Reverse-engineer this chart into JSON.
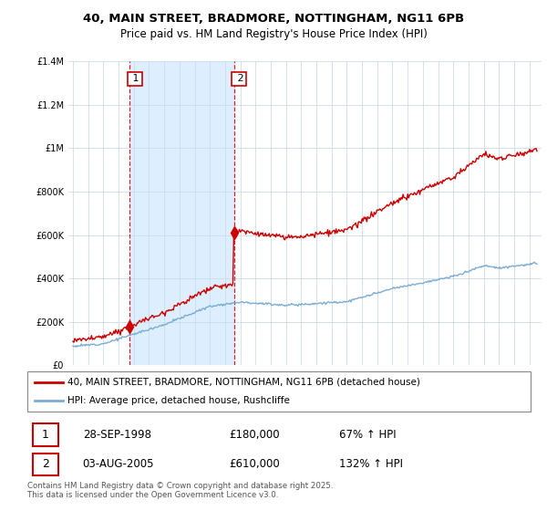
{
  "title_line1": "40, MAIN STREET, BRADMORE, NOTTINGHAM, NG11 6PB",
  "title_line2": "Price paid vs. HM Land Registry's House Price Index (HPI)",
  "legend_entry1": "40, MAIN STREET, BRADMORE, NOTTINGHAM, NG11 6PB (detached house)",
  "legend_entry2": "HPI: Average price, detached house, Rushcliffe",
  "sale1_label": "1",
  "sale1_date": "28-SEP-1998",
  "sale1_price": "£180,000",
  "sale1_hpi": "67% ↑ HPI",
  "sale2_label": "2",
  "sale2_date": "03-AUG-2005",
  "sale2_price": "£610,000",
  "sale2_hpi": "132% ↑ HPI",
  "footer": "Contains HM Land Registry data © Crown copyright and database right 2025.\nThis data is licensed under the Open Government Licence v3.0.",
  "sale1_color": "#cc0000",
  "sale2_color": "#cc0000",
  "vline_color": "#cc0000",
  "hpi_color": "#7aadd4",
  "red_line_color": "#cc0000",
  "shade_color": "#ddeeff",
  "ylim": [
    0,
    1400000
  ],
  "yticks": [
    0,
    200000,
    400000,
    600000,
    800000,
    1000000,
    1200000,
    1400000
  ],
  "sale1_x": 1998.74,
  "sale1_y": 180000,
  "sale2_x": 2005.58,
  "sale2_y": 610000,
  "xlim_left": 1994.7,
  "xlim_right": 2025.8
}
